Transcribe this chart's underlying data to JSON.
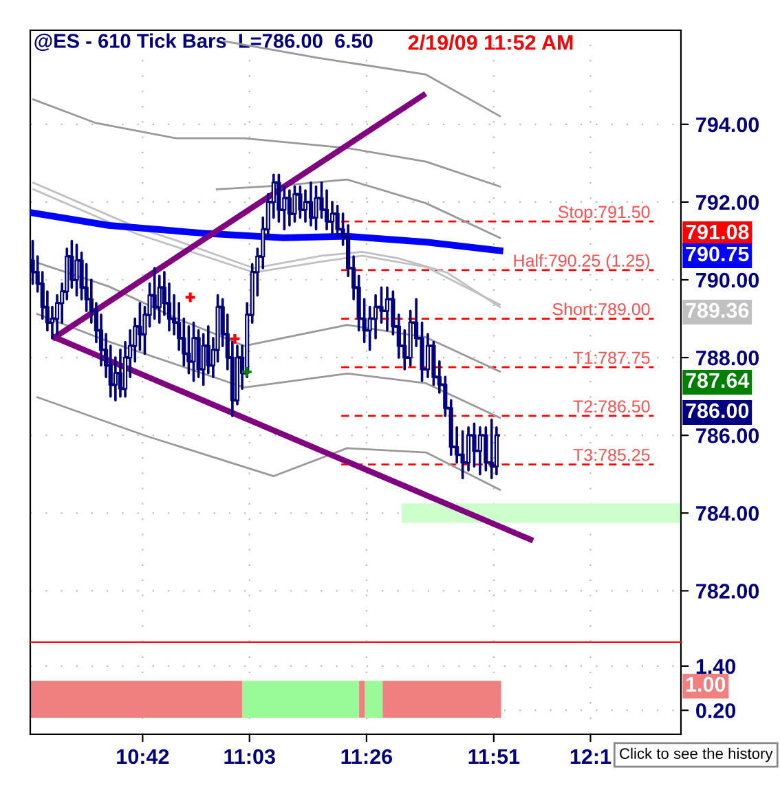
{
  "chart_data": [
    {
      "type": "candlestick",
      "title": "@ES - 610 Tick Bars  L=786.00  6.50",
      "subtitle": "2/19/09 11:52 AM",
      "x": [
        10.34,
        10.356,
        10.372,
        10.388,
        10.404,
        10.42,
        10.436,
        10.452,
        10.468,
        10.484,
        10.5,
        10.516,
        10.532,
        10.548,
        10.564,
        10.58,
        10.595,
        10.611,
        10.627,
        10.643,
        10.659,
        10.675,
        10.691,
        10.707,
        10.723,
        10.739,
        10.755,
        10.771,
        10.787,
        10.803,
        10.819,
        10.835,
        10.851,
        10.867,
        10.883,
        10.899,
        10.915,
        10.931,
        10.946,
        10.962,
        10.978,
        10.994,
        11.01,
        11.026,
        11.042,
        11.059,
        11.076,
        11.094,
        11.111,
        11.129,
        11.146,
        11.164,
        11.181,
        11.198,
        11.216,
        11.233,
        11.251,
        11.268,
        11.286,
        11.303,
        11.321,
        11.338,
        11.356,
        11.373,
        11.391,
        11.408,
        11.426,
        11.444,
        11.463,
        11.482,
        11.501,
        11.52,
        11.539,
        11.558,
        11.577,
        11.596,
        11.615,
        11.634,
        11.653,
        11.672,
        11.691,
        11.71,
        11.729,
        11.748,
        11.767,
        11.786,
        11.805,
        11.824,
        11.843,
        11.859
      ],
      "ohlc": [
        [
          790.5,
          791.0,
          789.9,
          790.2
        ],
        [
          790.2,
          790.6,
          789.7,
          789.9
        ],
        [
          789.9,
          790.2,
          789.0,
          789.3
        ],
        [
          789.3,
          789.7,
          788.7,
          788.9
        ],
        [
          788.9,
          789.3,
          788.5,
          789.0
        ],
        [
          789.0,
          789.6,
          788.6,
          789.4
        ],
        [
          789.4,
          789.9,
          788.9,
          789.7
        ],
        [
          789.7,
          790.8,
          789.5,
          790.6
        ],
        [
          790.6,
          791.0,
          789.8,
          790.0
        ],
        [
          790.0,
          790.9,
          789.6,
          790.5
        ],
        [
          790.5,
          790.7,
          789.5,
          789.8
        ],
        [
          789.8,
          790.4,
          789.2,
          789.5
        ],
        [
          789.5,
          790.0,
          788.9,
          789.2
        ],
        [
          789.2,
          789.4,
          788.4,
          788.7
        ],
        [
          788.7,
          789.1,
          787.8,
          788.2
        ],
        [
          788.2,
          788.6,
          787.5,
          787.8
        ],
        [
          787.8,
          788.3,
          787.0,
          787.3
        ],
        [
          787.3,
          788.0,
          786.9,
          787.6
        ],
        [
          787.6,
          788.2,
          787.0,
          787.2
        ],
        [
          787.2,
          788.4,
          787.0,
          788.0
        ],
        [
          788.0,
          788.7,
          787.5,
          788.3
        ],
        [
          788.3,
          789.0,
          787.9,
          788.8
        ],
        [
          788.8,
          789.4,
          788.2,
          788.6
        ],
        [
          788.6,
          789.3,
          788.1,
          789.1
        ],
        [
          789.1,
          789.9,
          788.8,
          789.6
        ],
        [
          789.6,
          790.3,
          789.0,
          789.3
        ],
        [
          789.3,
          790.1,
          788.9,
          789.8
        ],
        [
          789.8,
          790.2,
          789.1,
          789.4
        ],
        [
          789.4,
          789.9,
          788.7,
          789.0
        ],
        [
          789.0,
          789.6,
          788.6,
          788.9
        ],
        [
          788.9,
          789.4,
          788.2,
          788.5
        ],
        [
          788.5,
          789.0,
          787.8,
          788.1
        ],
        [
          788.1,
          788.8,
          787.6,
          787.9
        ],
        [
          787.9,
          788.9,
          787.4,
          788.5
        ],
        [
          788.5,
          788.7,
          787.5,
          787.7
        ],
        [
          787.7,
          788.6,
          787.3,
          788.3
        ],
        [
          788.3,
          788.8,
          787.6,
          787.8
        ],
        [
          787.8,
          788.5,
          787.5,
          788.2
        ],
        [
          788.2,
          789.6,
          787.9,
          789.3
        ],
        [
          789.3,
          789.5,
          788.3,
          788.6
        ],
        [
          788.6,
          789.1,
          787.7,
          788.0
        ],
        [
          788.0,
          788.4,
          786.5,
          786.9
        ],
        [
          786.9,
          788.3,
          786.8,
          788.0
        ],
        [
          788.0,
          788.3,
          787.2,
          787.6
        ],
        [
          787.6,
          789.4,
          787.5,
          789.1
        ],
        [
          789.1,
          790.4,
          788.9,
          790.2
        ],
        [
          790.2,
          790.8,
          789.6,
          790.6
        ],
        [
          790.6,
          791.6,
          790.3,
          791.3
        ],
        [
          791.3,
          792.2,
          791.1,
          792.0
        ],
        [
          792.0,
          792.7,
          791.6,
          792.5
        ],
        [
          792.5,
          792.7,
          791.5,
          791.8
        ],
        [
          791.8,
          792.4,
          791.3,
          792.1
        ],
        [
          792.1,
          792.3,
          791.4,
          791.7
        ],
        [
          791.7,
          792.4,
          791.5,
          792.2
        ],
        [
          792.2,
          792.4,
          791.6,
          791.8
        ],
        [
          791.8,
          792.3,
          791.5,
          792.0
        ],
        [
          792.0,
          792.5,
          791.4,
          791.6
        ],
        [
          791.6,
          792.4,
          791.3,
          792.1
        ],
        [
          792.1,
          792.5,
          791.6,
          791.8
        ],
        [
          791.8,
          792.3,
          791.3,
          791.5
        ],
        [
          791.5,
          792.0,
          791.2,
          791.7
        ],
        [
          791.7,
          791.9,
          791.1,
          791.3
        ],
        [
          791.3,
          791.7,
          790.9,
          791.1
        ],
        [
          791.1,
          791.4,
          790.1,
          790.3
        ],
        [
          790.3,
          790.6,
          789.5,
          789.8
        ],
        [
          789.8,
          790.1,
          788.7,
          789.0
        ],
        [
          789.0,
          789.5,
          788.4,
          788.7
        ],
        [
          788.7,
          789.3,
          788.2,
          789.0
        ],
        [
          789.0,
          789.6,
          788.5,
          789.3
        ],
        [
          789.3,
          789.8,
          788.9,
          789.2
        ],
        [
          789.2,
          789.8,
          788.7,
          789.5
        ],
        [
          789.5,
          789.7,
          788.6,
          788.8
        ],
        [
          788.8,
          789.1,
          788.0,
          788.3
        ],
        [
          788.3,
          788.7,
          787.7,
          788.0
        ],
        [
          788.0,
          789.2,
          787.8,
          788.9
        ],
        [
          788.9,
          789.5,
          788.3,
          788.5
        ],
        [
          788.5,
          788.9,
          787.4,
          787.7
        ],
        [
          787.7,
          788.6,
          787.5,
          788.3
        ],
        [
          788.3,
          788.4,
          787.3,
          787.5
        ],
        [
          787.5,
          787.9,
          787.1,
          787.3
        ],
        [
          787.3,
          787.5,
          786.5,
          786.7
        ],
        [
          786.7,
          786.9,
          785.5,
          785.7
        ],
        [
          785.7,
          786.2,
          785.3,
          785.5
        ],
        [
          785.5,
          786.1,
          784.9,
          785.3
        ],
        [
          785.3,
          786.2,
          785.1,
          786.0
        ],
        [
          786.0,
          786.3,
          785.2,
          785.6
        ],
        [
          785.6,
          786.2,
          785.0,
          786.0
        ],
        [
          786.0,
          786.2,
          785.1,
          785.3
        ],
        [
          785.3,
          786.4,
          784.9,
          785.2
        ],
        [
          785.2,
          786.2,
          785.0,
          786.0
        ]
      ],
      "series": [
        {
          "type": "line",
          "color": "#999999",
          "x": [
            10.966,
            11.274,
            11.628,
            11.87
          ],
          "values": [
            796.14,
            795.71,
            795.28,
            794.21
          ]
        },
        {
          "type": "line",
          "color": "#999999",
          "x": [
            10.342,
            10.544,
            10.811,
            11.033,
            11.37,
            11.628,
            11.87
          ],
          "values": [
            794.64,
            794.04,
            793.64,
            793.64,
            793.39,
            793.04,
            792.4
          ]
        },
        {
          "type": "line",
          "color": "#999999",
          "x": [
            10.943,
            11.162,
            11.37,
            11.628,
            11.87
          ],
          "values": [
            792.33,
            792.43,
            792.58,
            791.97,
            791.08
          ]
        },
        {
          "type": "line",
          "color": "#c0c0c0",
          "x": [
            10.342,
            10.678,
            10.811,
            11.064,
            11.288,
            11.419,
            11.539,
            11.696,
            11.87
          ],
          "values": [
            792.5,
            791.36,
            791.01,
            790.3,
            790.62,
            790.72,
            790.55,
            790.19,
            789.3
          ]
        },
        {
          "type": "line",
          "color": "#c0c0c0",
          "x": [
            10.342,
            10.678,
            11.064,
            11.288,
            11.419,
            11.628,
            11.87
          ],
          "values": [
            792.33,
            791.19,
            790.19,
            790.47,
            790.62,
            790.33,
            789.36
          ]
        },
        {
          "type": "line",
          "color": "#999999",
          "x": [
            10.355,
            10.589,
            10.811,
            11.033,
            11.37,
            11.628,
            11.87
          ],
          "values": [
            790.44,
            789.83,
            789.01,
            788.3,
            788.84,
            788.52,
            787.64
          ]
        },
        {
          "type": "line",
          "color": "#999999",
          "x": [
            10.355,
            10.589,
            11.033,
            11.37,
            11.628,
            11.87
          ],
          "values": [
            789.12,
            788.41,
            787.23,
            787.59,
            787.34,
            786.45
          ]
        },
        {
          "type": "line",
          "color": "#999999",
          "x": [
            10.355,
            10.709,
            11.129,
            11.37,
            11.628,
            11.87
          ],
          "values": [
            786.98,
            785.99,
            784.95,
            785.67,
            785.56,
            784.6
          ]
        },
        {
          "type": "line",
          "color": "#0000ff",
          "x": [
            10.342,
            10.589,
            10.913,
            11.162,
            11.37,
            11.628,
            11.87
          ],
          "values": [
            791.72,
            791.4,
            791.19,
            791.08,
            791.12,
            790.97,
            790.75
          ]
        },
        {
          "type": "line",
          "color": "#800080",
          "x": [
            10.412,
            11.619
          ],
          "values": [
            788.52,
            794.75
          ]
        },
        {
          "type": "line",
          "color": "#800080",
          "x": [
            10.412,
            11.97
          ],
          "values": [
            788.52,
            783.32
          ]
        },
        {
          "type": "scatter",
          "color": "#ff0000",
          "marker": "cross",
          "x": [
            10.856,
            11.002
          ],
          "values": [
            789.55,
            788.48
          ]
        },
        {
          "type": "scatter",
          "color": "#008000",
          "marker": "cross",
          "x": [
            11.041
          ],
          "values": [
            787.63
          ]
        }
      ],
      "ref_lines": [
        {
          "axis": "y",
          "value": 791.5,
          "label": "Stop:791.50",
          "color": "#ff0000",
          "line_style": "dashed"
        },
        {
          "axis": "y",
          "value": 790.25,
          "label": "Half:790.25 (1.25)",
          "color": "#ff0000",
          "line_style": "dashed"
        },
        {
          "axis": "y",
          "value": 789.0,
          "label": "Short:789.00",
          "color": "#ff0000",
          "line_style": "dashed"
        },
        {
          "axis": "y",
          "value": 787.75,
          "label": "T1:787.75",
          "color": "#ff0000",
          "line_style": "dashed"
        },
        {
          "axis": "y",
          "value": 786.5,
          "label": "T2:786.50",
          "color": "#ff0000",
          "line_style": "dashed"
        },
        {
          "axis": "y",
          "value": 785.25,
          "label": "T3:785.25",
          "color": "#ff0000",
          "line_style": "dashed"
        }
      ],
      "annotations": [
        "791.08",
        "790.75",
        "789.36",
        "787.64",
        "786.00"
      ],
      "bands": [
        {
          "axis": "y",
          "from": 783.75,
          "to": 784.25,
          "color": "#ccffcc"
        }
      ],
      "xlim": [
        10.332,
        12.463
      ],
      "xticks": [
        {
          "value": 10.7,
          "label": null
        },
        {
          "value": 11.05,
          "label": null
        },
        {
          "value": 11.4333,
          "label": null
        },
        {
          "value": 11.85,
          "label": null
        },
        {
          "value": 12.1667,
          "label": null
        }
      ],
      "ylim": [
        780.68,
        796.42
      ],
      "yticks": [
        {
          "value": 782,
          "label": "782.00"
        },
        {
          "value": 784,
          "label": "784.00"
        },
        {
          "value": 786,
          "label": "786.00"
        },
        {
          "value": 788,
          "label": "788.00"
        },
        {
          "value": 790,
          "label": "790.00"
        },
        {
          "value": 792,
          "label": "792.00"
        },
        {
          "value": 794,
          "label": "794.00"
        }
      ],
      "grid": true,
      "tick_labels": "y"
    },
    {
      "type": "area",
      "series": [
        {
          "type": "area",
          "color": "#f08080",
          "x": [
            10.332,
            11.027
          ],
          "values": [
            1,
            1
          ]
        },
        {
          "type": "area",
          "color": "#98fb98",
          "x": [
            11.027,
            11.409
          ],
          "values": [
            1,
            1
          ]
        },
        {
          "type": "area",
          "color": "#f08080",
          "x": [
            11.409,
            11.428
          ],
          "values": [
            1,
            1
          ]
        },
        {
          "type": "area",
          "color": "#98fb98",
          "x": [
            11.428,
            11.486
          ],
          "values": [
            1,
            1
          ]
        },
        {
          "type": "area",
          "color": "#f08080",
          "x": [
            11.486,
            11.874
          ],
          "values": [
            1,
            1
          ]
        }
      ],
      "annotations": [
        "1.00",
        "Click to see the history"
      ],
      "xlim": [
        10.332,
        12.463
      ],
      "xticks": [
        {
          "value": 10.7,
          "label": "10:42"
        },
        {
          "value": 11.05,
          "label": "11:03"
        },
        {
          "value": 11.4333,
          "label": "11:26"
        },
        {
          "value": 11.85,
          "label": "11:51"
        },
        {
          "value": 12.1667,
          "label": "12:1"
        }
      ],
      "ylim": [
        -0.45,
        2.05
      ],
      "yticks": [
        {
          "value": 1.4,
          "label": "1.40"
        },
        {
          "value": 0.2,
          "label": "0.20"
        }
      ],
      "grid": true
    }
  ]
}
